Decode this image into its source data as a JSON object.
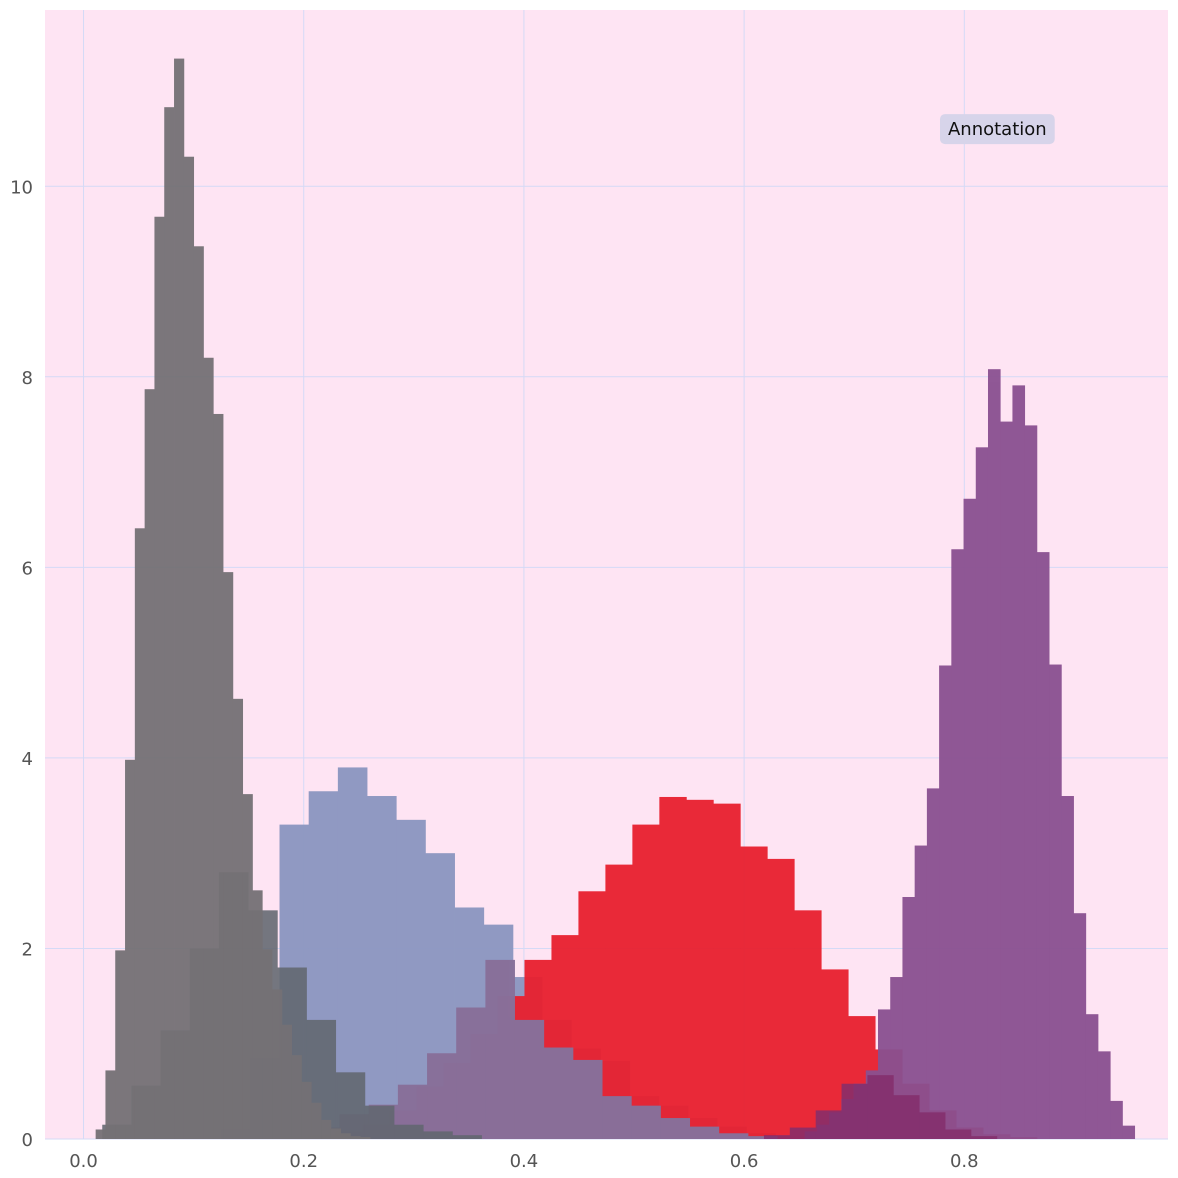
{
  "chart_data": {
    "type": "bar",
    "title": "",
    "xlabel": "",
    "ylabel": "",
    "xlim": [
      -0.035,
      0.985
    ],
    "ylim": [
      0,
      11.85
    ],
    "grid": true,
    "x_ticks": [
      0.0,
      0.2,
      0.4,
      0.6,
      0.8
    ],
    "x_tick_labels": [
      "0.0",
      "0.2",
      "0.4",
      "0.6",
      "0.8"
    ],
    "y_ticks": [
      0,
      2,
      4,
      6,
      8,
      10
    ],
    "y_tick_labels": [
      "0",
      "2",
      "4",
      "6",
      "8",
      "10"
    ],
    "annotation": {
      "text": "Annotation",
      "x": 0.83,
      "y": 10.6
    },
    "colors": {
      "background": "#fee4f3",
      "grid": "#d4daf6",
      "axis_text": "#555555"
    },
    "series": [
      {
        "color": "#8e98c2",
        "opacity": 0.98,
        "x_start": 0.125,
        "bin_width": 0.0265,
        "values": [
          0.1,
          0.85,
          3.3,
          3.65,
          3.9,
          3.6,
          3.35,
          3.0,
          2.43,
          2.25,
          1.7,
          1.25,
          0.95,
          0.82,
          0.45,
          0.35,
          0.22,
          0.13,
          0.06,
          0.03,
          0.02
        ]
      },
      {
        "color": "#e8202f",
        "opacity": 0.95,
        "x_start": 0.18,
        "bin_width": 0.0245,
        "values": [
          0.02,
          0.04,
          0.08,
          0.15,
          0.3,
          0.55,
          0.8,
          1.1,
          1.5,
          1.88,
          2.14,
          2.6,
          2.88,
          3.3,
          3.59,
          3.56,
          3.52,
          3.07,
          2.94,
          2.4,
          1.78,
          1.29,
          0.94,
          0.58,
          0.3,
          0.12,
          0.05,
          0.02
        ]
      },
      {
        "color": "#88709a",
        "opacity": 0.98,
        "x_start": 0.206,
        "bin_width": 0.0265,
        "values": [
          0.12,
          0.26,
          0.36,
          0.57,
          0.9,
          1.38,
          1.88,
          1.25,
          0.96,
          0.83,
          0.45,
          0.35,
          0.22,
          0.13,
          0.06,
          0.03
        ]
      },
      {
        "color": "#626770",
        "opacity": 0.88,
        "x_start": 0.017,
        "bin_width": 0.0265,
        "values": [
          0.15,
          0.56,
          1.14,
          2.0,
          2.8,
          2.4,
          1.8,
          1.25,
          0.7,
          0.35,
          0.15,
          0.08,
          0.04
        ]
      },
      {
        "color": "#747175",
        "opacity": 0.95,
        "x_start": 0.011,
        "bin_width": 0.0089,
        "values": [
          0.1,
          0.72,
          1.98,
          3.98,
          6.41,
          7.87,
          9.68,
          10.83,
          11.34,
          10.31,
          9.37,
          8.2,
          7.61,
          5.95,
          4.62,
          3.62,
          2.61,
          1.99,
          1.57,
          1.2,
          0.88,
          0.6,
          0.38,
          0.2,
          0.11,
          0.06,
          0.03,
          0.02
        ]
      },
      {
        "color": "#8a5090",
        "opacity": 0.95,
        "x_start": 0.655,
        "bin_width": 0.0111,
        "values": [
          0.08,
          0.15,
          0.28,
          0.42,
          0.58,
          0.72,
          1.36,
          1.7,
          2.54,
          3.08,
          3.68,
          4.97,
          6.19,
          6.72,
          7.26,
          8.08,
          7.53,
          7.91,
          7.49,
          6.16,
          4.98,
          3.6,
          2.37,
          1.31,
          0.92,
          0.4,
          0.14
        ]
      },
      {
        "color": "#842e6c",
        "opacity": 0.85,
        "x_start": 0.618,
        "bin_width": 0.0235,
        "values": [
          0.04,
          0.12,
          0.3,
          0.58,
          0.67,
          0.46,
          0.28,
          0.1,
          0.03
        ]
      }
    ]
  }
}
